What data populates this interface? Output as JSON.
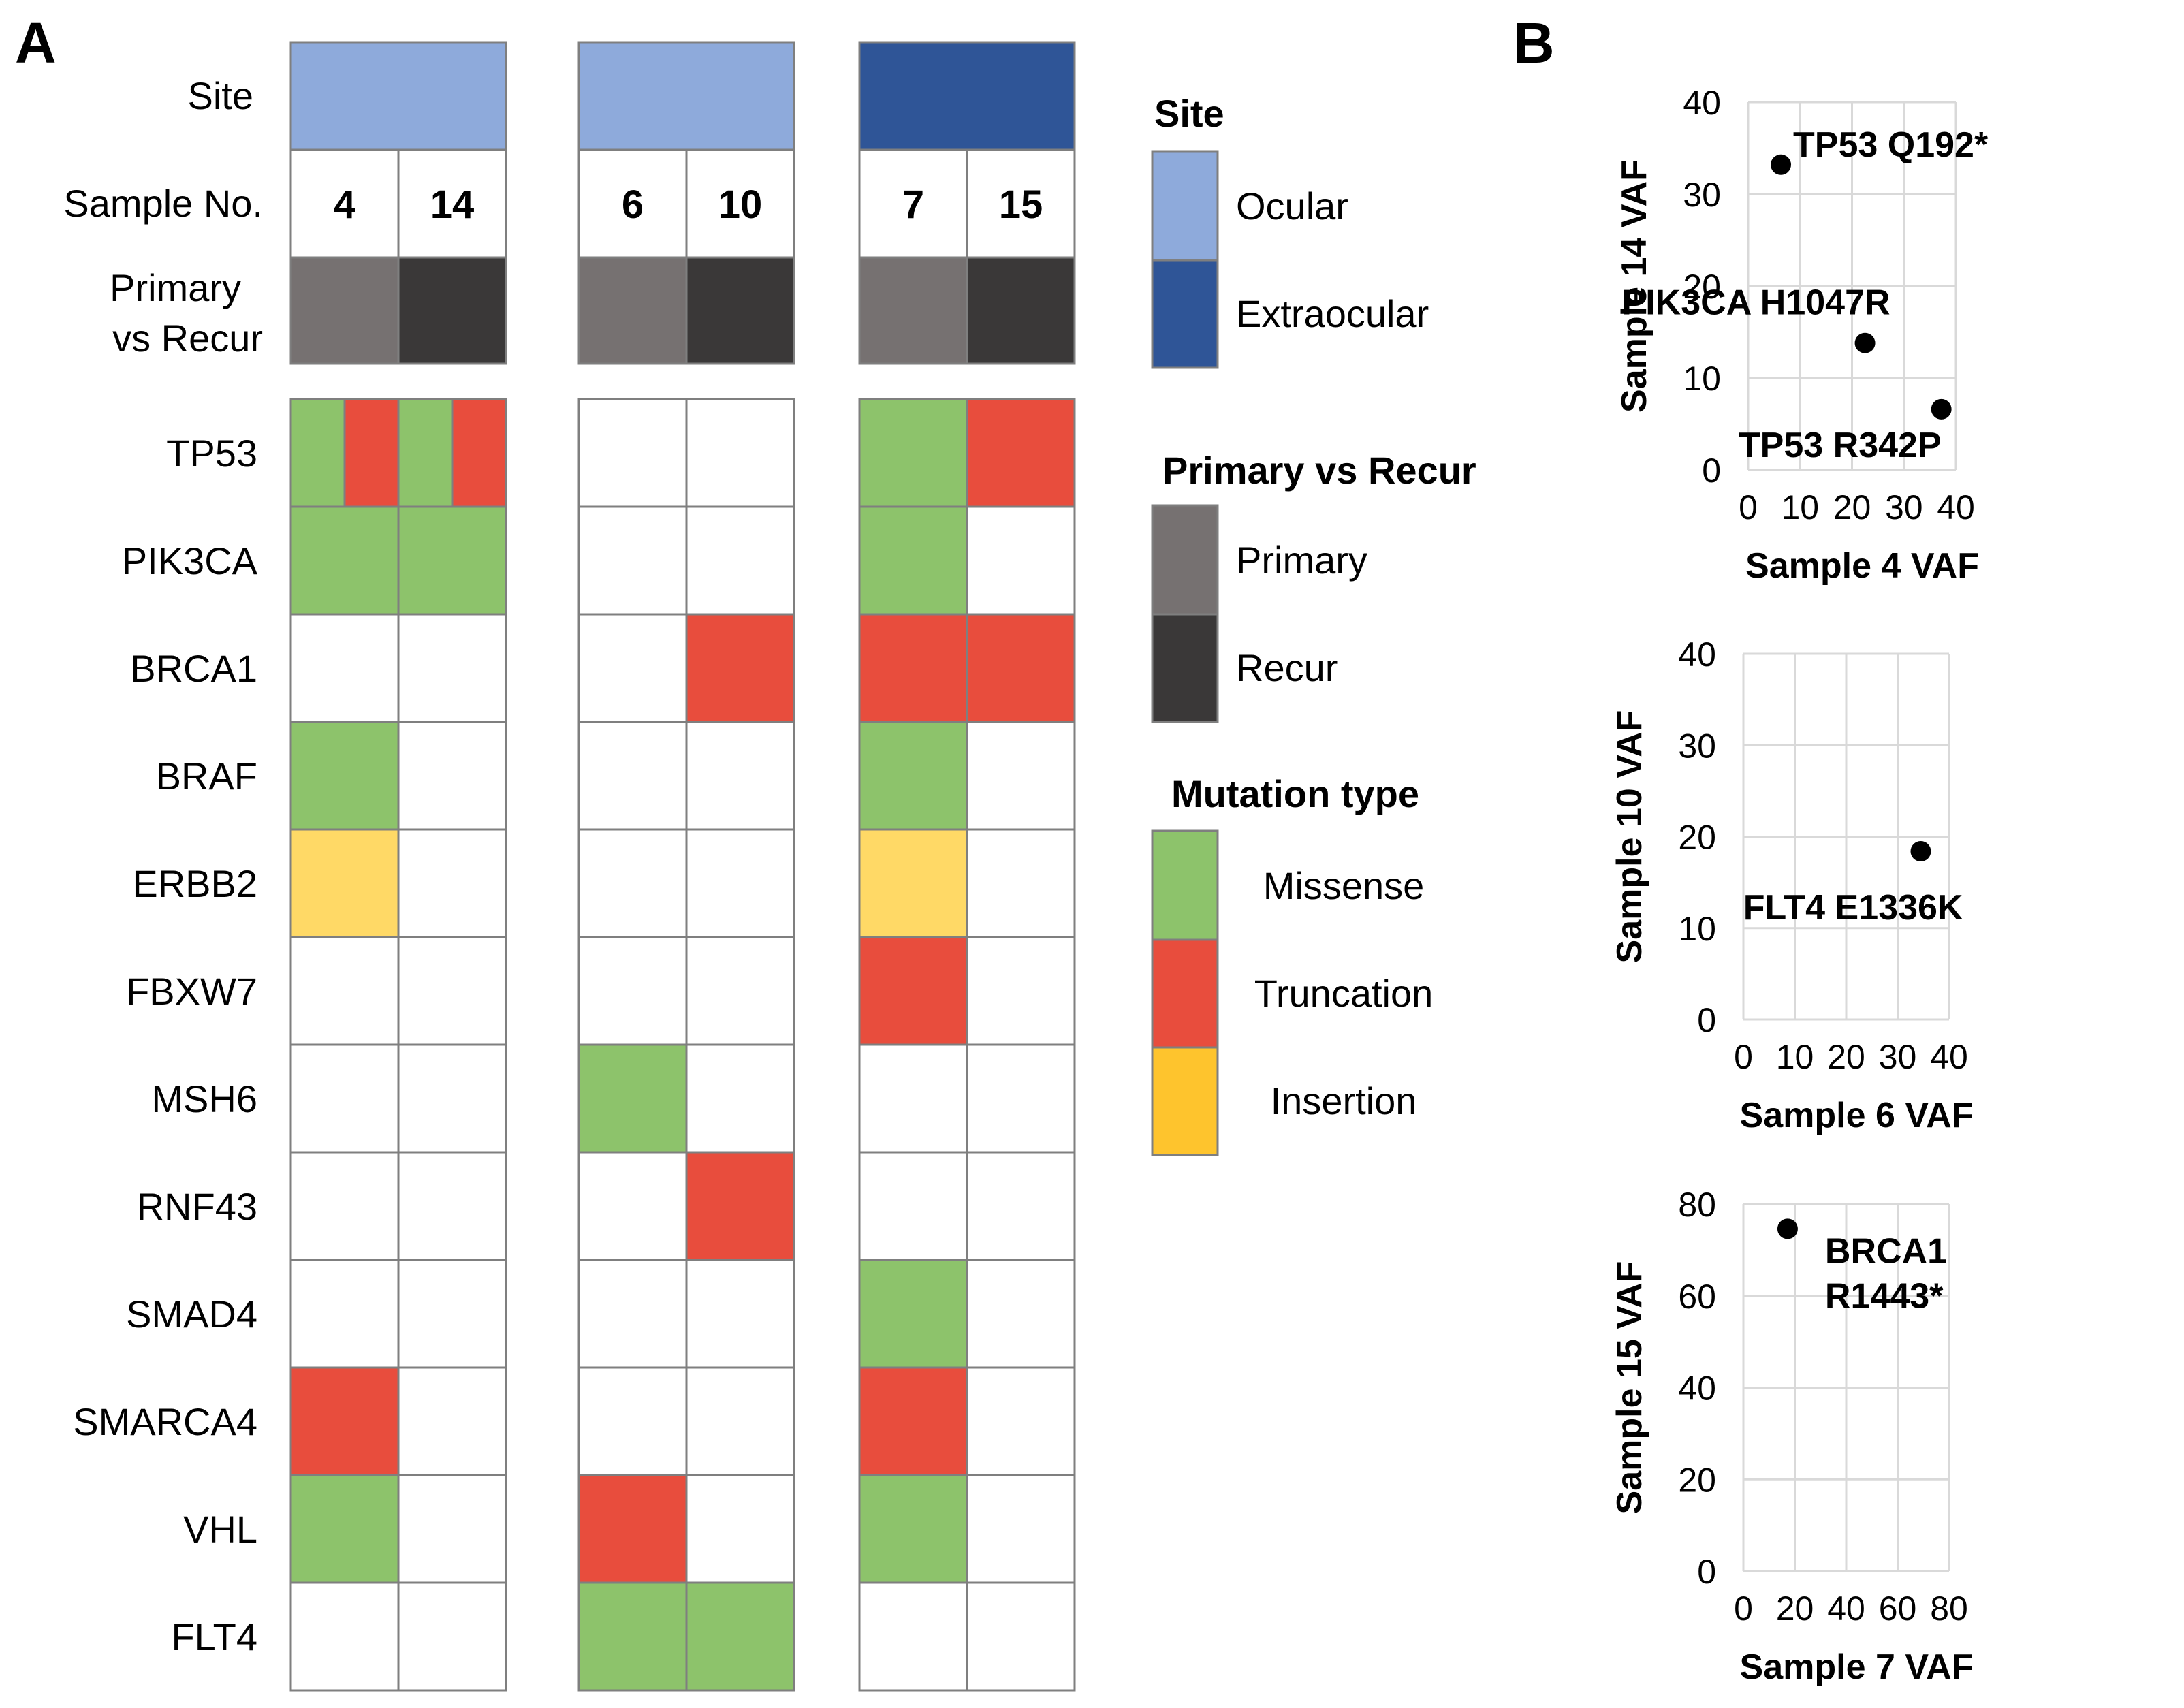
{
  "panel_labels": {
    "a": "A",
    "b": "B"
  },
  "colors": {
    "ocular": "#8eaadb",
    "extraocular": "#2f5597",
    "primary": "#767171",
    "recur": "#3a3838",
    "missense": "#8dc36b",
    "truncation": "#e84d3d",
    "insertion": "#ffd966",
    "insertion_legend": "#fec42d",
    "grid_line": "#7f7f7f",
    "axis_grid": "#d9d9d9",
    "text": "#000000"
  },
  "oncoprint": {
    "row_labels": {
      "site": "Site",
      "sample": "Sample No.",
      "pvr_line1": "Primary",
      "pvr_line2": "vs Recur"
    },
    "groups": [
      {
        "samples": [
          {
            "id": "4",
            "status": "Primary"
          },
          {
            "id": "14",
            "status": "Recur"
          }
        ],
        "site": "Ocular"
      },
      {
        "samples": [
          {
            "id": "6",
            "status": "Primary"
          },
          {
            "id": "10",
            "status": "Recur"
          }
        ],
        "site": "Ocular"
      },
      {
        "samples": [
          {
            "id": "7",
            "status": "Primary"
          },
          {
            "id": "15",
            "status": "Recur"
          }
        ],
        "site": "Extraocular"
      }
    ],
    "genes": [
      "TP53",
      "PIK3CA",
      "BRCA1",
      "BRAF",
      "ERBB2",
      "FBXW7",
      "MSH6",
      "RNF43",
      "SMAD4",
      "SMARCA4",
      "VHL",
      "FLT4"
    ],
    "matrix": [
      [
        [
          "Missense",
          "Truncation"
        ],
        [
          "Missense",
          "Truncation"
        ],
        [],
        [],
        [
          "Missense"
        ],
        [
          "Truncation"
        ]
      ],
      [
        [
          "Missense"
        ],
        [
          "Missense"
        ],
        [],
        [],
        [
          "Missense"
        ],
        []
      ],
      [
        [],
        [],
        [],
        [
          "Truncation"
        ],
        [
          "Truncation"
        ],
        [
          "Truncation"
        ]
      ],
      [
        [
          "Missense"
        ],
        [],
        [],
        [],
        [
          "Missense"
        ],
        []
      ],
      [
        [
          "Insertion"
        ],
        [],
        [],
        [],
        [
          "Insertion"
        ],
        []
      ],
      [
        [],
        [],
        [],
        [],
        [
          "Truncation"
        ],
        []
      ],
      [
        [],
        [],
        [
          "Missense"
        ],
        [],
        [],
        []
      ],
      [
        [],
        [],
        [],
        [
          "Truncation"
        ],
        [],
        []
      ],
      [
        [],
        [],
        [],
        [],
        [
          "Missense"
        ],
        []
      ],
      [
        [
          "Truncation"
        ],
        [],
        [],
        [],
        [
          "Truncation"
        ],
        []
      ],
      [
        [
          "Missense"
        ],
        [],
        [
          "Truncation"
        ],
        [],
        [
          "Missense"
        ],
        []
      ],
      [
        [],
        [],
        [
          "Missense"
        ],
        [
          "Missense"
        ],
        [],
        []
      ]
    ]
  },
  "legend": {
    "site": {
      "title": "Site",
      "items": [
        "Ocular",
        "Extraocular"
      ]
    },
    "pvr": {
      "title": "Primary vs Recur",
      "items": [
        "Primary",
        "Recur"
      ]
    },
    "mutation": {
      "title": "Mutation type",
      "items": [
        "Missense",
        "Truncation",
        "Insertion"
      ]
    }
  },
  "chart_data": [
    {
      "type": "scatter",
      "xlabel": "Sample 4 VAF",
      "ylabel": "Sample 14 VAF",
      "xlim": [
        0,
        40
      ],
      "ylim": [
        0,
        40
      ],
      "xticks": [
        0,
        10,
        20,
        30,
        40
      ],
      "yticks": [
        0,
        10,
        20,
        30,
        40
      ],
      "points": [
        {
          "x": 6.3,
          "y": 33.2,
          "label": "TP53 Q192*"
        },
        {
          "x": 22.5,
          "y": 13.8,
          "label": "PIK3CA H1047R"
        },
        {
          "x": 37.2,
          "y": 6.6,
          "label": "TP53 R342P"
        }
      ]
    },
    {
      "type": "scatter",
      "xlabel": "Sample 6 VAF",
      "ylabel": "Sample 10 VAF",
      "xlim": [
        0,
        40
      ],
      "ylim": [
        0,
        40
      ],
      "xticks": [
        0,
        10,
        20,
        30,
        40
      ],
      "yticks": [
        0,
        10,
        20,
        30,
        40
      ],
      "points": [
        {
          "x": 34.5,
          "y": 18.4,
          "label": "FLT4 E1336K"
        }
      ]
    },
    {
      "type": "scatter",
      "xlabel": "Sample 7 VAF",
      "ylabel": "Sample 15 VAF",
      "xlim": [
        0,
        80
      ],
      "ylim": [
        0,
        80
      ],
      "xticks": [
        0,
        20,
        40,
        60,
        80
      ],
      "yticks": [
        0,
        20,
        40,
        60,
        80
      ],
      "points": [
        {
          "x": 17.2,
          "y": 74.6,
          "label": "BRCA1\nR1443*"
        }
      ]
    }
  ]
}
